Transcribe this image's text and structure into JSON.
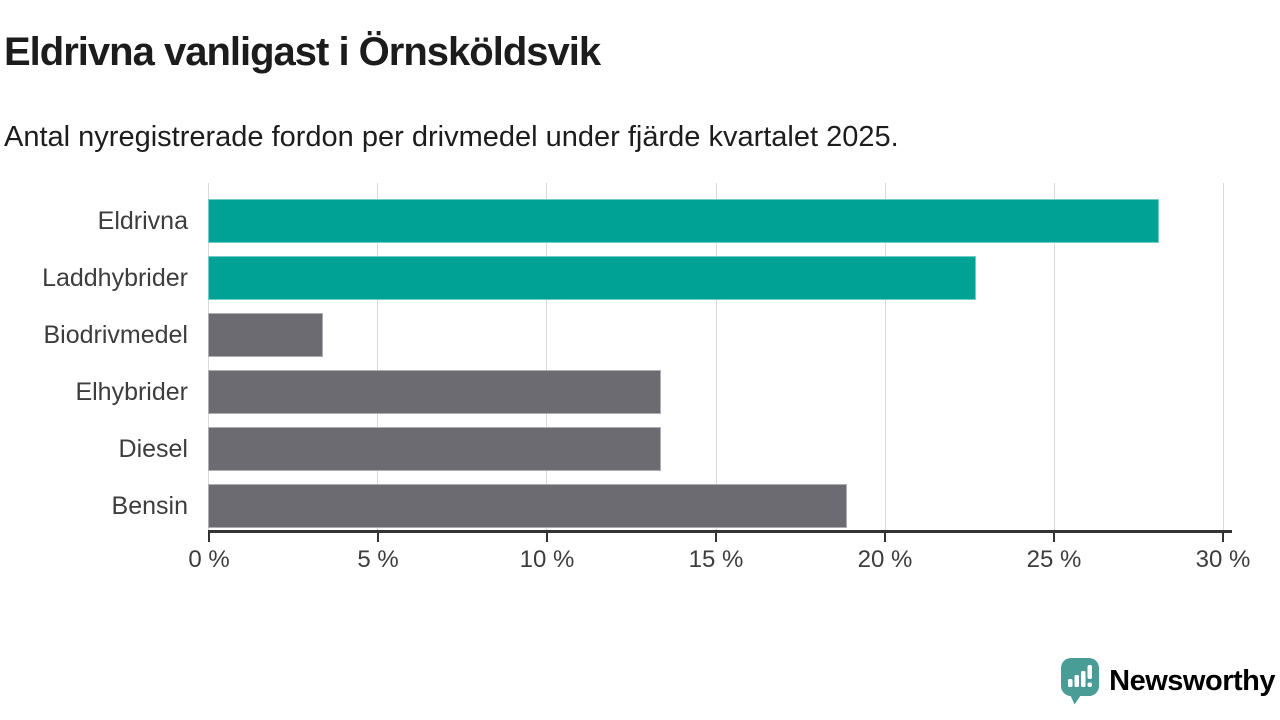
{
  "header": {
    "title": "Eldrivna vanligast i Örnsköldsvik",
    "subtitle": "Antal nyregistrerade fordon per drivmedel under fjärde kvartalet 2025."
  },
  "chart_data": {
    "type": "bar",
    "orientation": "horizontal",
    "title": "Eldrivna vanligast i Örnsköldsvik",
    "subtitle": "Antal nyregistrerade fordon per drivmedel under fjärde kvartalet 2025.",
    "categories": [
      "Eldrivna",
      "Laddhybrider",
      "Biodrivmedel",
      "Elhybrider",
      "Diesel",
      "Bensin"
    ],
    "values": [
      28.1,
      22.7,
      3.4,
      13.4,
      13.4,
      18.9
    ],
    "unit": "%",
    "xlabel": "",
    "ylabel": "",
    "xlim": [
      0,
      30
    ],
    "x_ticks": [
      0,
      5,
      10,
      15,
      20,
      25,
      30
    ],
    "x_tick_labels": [
      "0 %",
      "5 %",
      "10 %",
      "15 %",
      "20 %",
      "25 %",
      "30 %"
    ],
    "bar_colors": [
      "#00a296",
      "#00a296",
      "#6c6b72",
      "#6c6b72",
      "#6c6b72",
      "#6c6b72"
    ],
    "grid": "vertical-gridlines-on",
    "legend": "none"
  },
  "colors": {
    "accent_teal": "#00a296",
    "bar_gray": "#6c6b72",
    "gridline": "#dadada",
    "axis_line": "#333333",
    "title_text": "#1c1c1c",
    "label_text": "#3d3d3d",
    "brand_icon_teal": "#4a9c97",
    "brand_text_teal": "#3f938e"
  },
  "footer": {
    "brand": "Newsworthy",
    "logo_icon": "speech-bubble-with-bar-chart-and-exclamation"
  }
}
